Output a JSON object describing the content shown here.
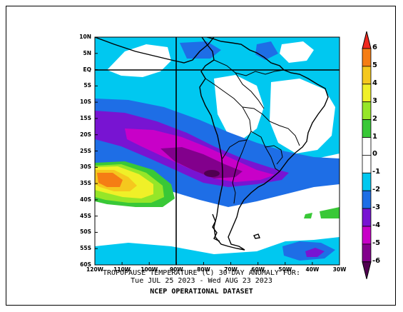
{
  "map": {
    "title_line1": "TROPOPAUSE TEMPERATURE (C)   30-DAY ANOMALY FOR:",
    "title_line2": "Tue JUL 25 2023 - Wed AUG 23 2023",
    "source": "NCEP OPERATIONAL DATASET",
    "lat_labels": [
      "10N",
      "5N",
      "EQ",
      "5S",
      "10S",
      "15S",
      "20S",
      "25S",
      "30S",
      "35S",
      "40S",
      "45S",
      "50S",
      "55S",
      "60S"
    ],
    "lon_labels": [
      "120W",
      "110W",
      "100W",
      "90W",
      "80W",
      "70W",
      "60W",
      "50W",
      "40W",
      "30W"
    ],
    "reference_lines": {
      "equator": "EQ",
      "meridian": "90W"
    }
  },
  "legend": {
    "levels": [
      "6",
      "5",
      "4",
      "3",
      "2",
      "1",
      "0",
      "-1",
      "-2",
      "-3",
      "-4",
      "-5",
      "-6"
    ],
    "colors": {
      "gt5": "#f0281e",
      "4to5": "#f57d14",
      "3to4": "#f5c81e",
      "2to3": "#f0f028",
      "1to2": "#96e628",
      "0to1": "#39c837",
      "neutral": "#ffffff",
      "m1tom2": "#00c8f0",
      "m2tom3": "#1e6ee6",
      "m3tom4": "#7814d2",
      "m4tom5": "#c800c8",
      "m5tom6": "#82008c",
      "ltm6": "#500050"
    }
  }
}
